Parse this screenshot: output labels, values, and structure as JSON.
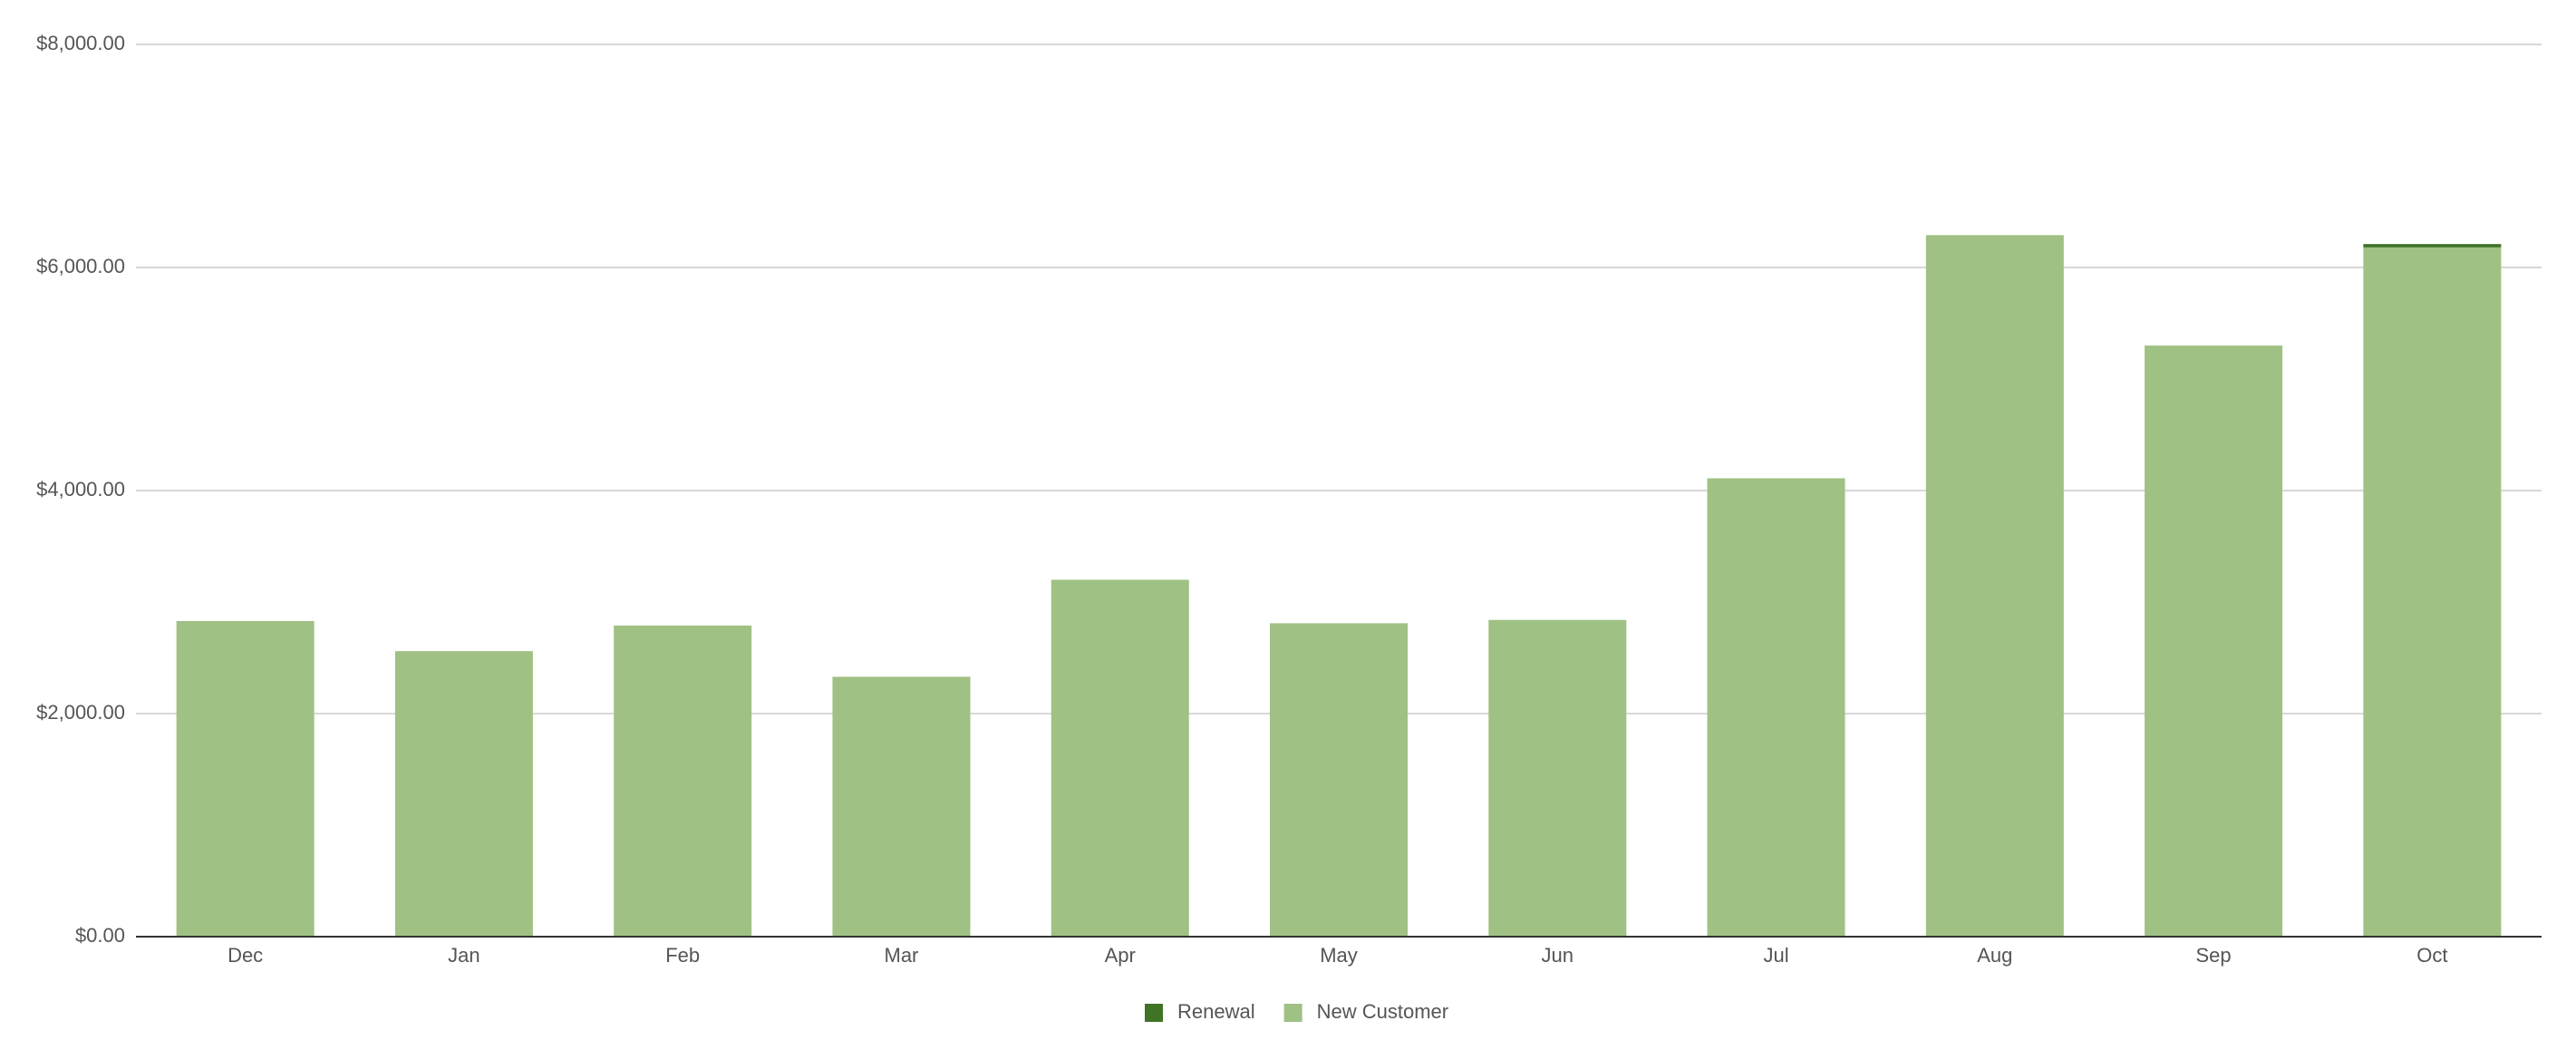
{
  "chart_data": {
    "type": "bar",
    "stacked": true,
    "categories": [
      "Dec",
      "Jan",
      "Feb",
      "Mar",
      "Apr",
      "May",
      "Jun",
      "Jul",
      "Aug",
      "Sep",
      "Oct"
    ],
    "series": [
      {
        "name": "Renewal",
        "color": "#3f7326",
        "values": [
          0,
          0,
          0,
          0,
          0,
          0,
          0,
          0,
          0,
          0,
          30
        ]
      },
      {
        "name": "New Customer",
        "color": "#9fc184",
        "values": [
          2830,
          2560,
          2790,
          2330,
          3200,
          2810,
          2840,
          4110,
          6290,
          5300,
          6180
        ]
      }
    ],
    "ylim": [
      0,
      8000
    ],
    "yticks": [
      {
        "value": 0,
        "label": "$0.00"
      },
      {
        "value": 2000,
        "label": "$2,000.00"
      },
      {
        "value": 4000,
        "label": "$4,000.00"
      },
      {
        "value": 6000,
        "label": "$6,000.00"
      },
      {
        "value": 8000,
        "label": "$8,000.00"
      }
    ],
    "grid": true,
    "legend": "bottom"
  }
}
